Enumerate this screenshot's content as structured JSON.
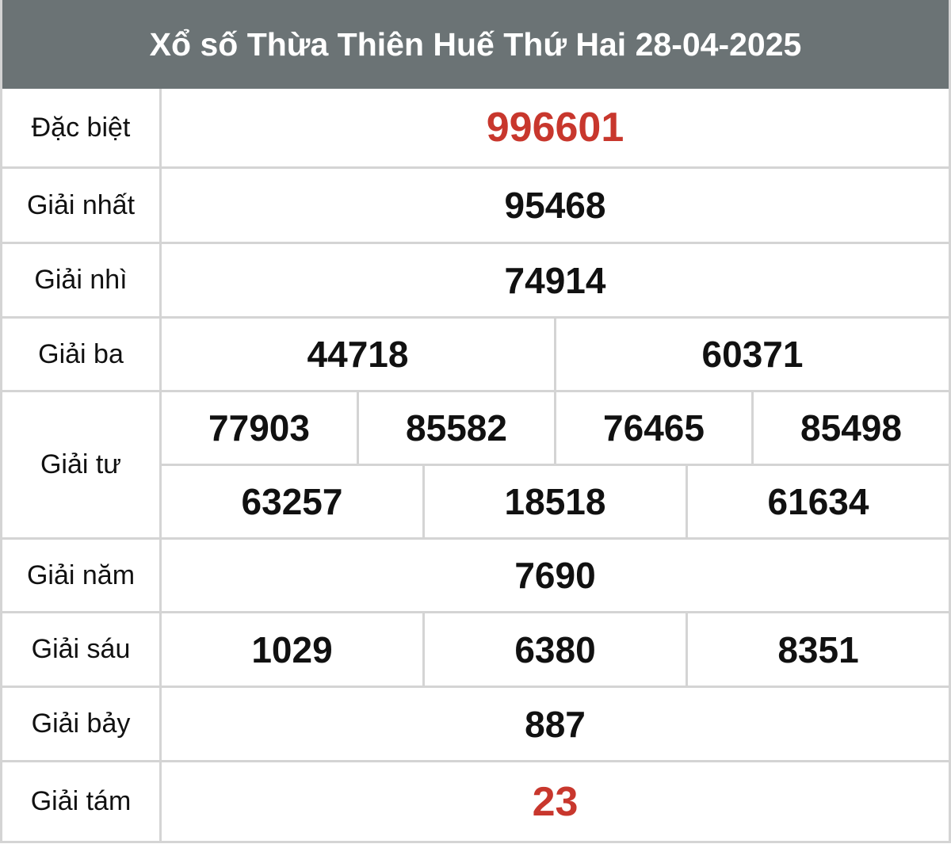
{
  "title": "Xổ số Thừa Thiên Huế Thứ Hai 28-04-2025",
  "colors": {
    "header_bg": "#6b7375",
    "highlight": "#c8372d",
    "border": "#d4d4d4"
  },
  "prizes": [
    {
      "label": "Đặc biệt",
      "rows": [
        [
          "996601"
        ]
      ]
    },
    {
      "label": "Giải nhất",
      "rows": [
        [
          "95468"
        ]
      ]
    },
    {
      "label": "Giải nhì",
      "rows": [
        [
          "74914"
        ]
      ]
    },
    {
      "label": "Giải ba",
      "rows": [
        [
          "44718",
          "60371"
        ]
      ]
    },
    {
      "label": "Giải tư",
      "rows": [
        [
          "77903",
          "85582",
          "76465",
          "85498"
        ],
        [
          "63257",
          "18518",
          "61634"
        ]
      ]
    },
    {
      "label": "Giải năm",
      "rows": [
        [
          "7690"
        ]
      ]
    },
    {
      "label": "Giải sáu",
      "rows": [
        [
          "1029",
          "6380",
          "8351"
        ]
      ]
    },
    {
      "label": "Giải bảy",
      "rows": [
        [
          "887"
        ]
      ]
    },
    {
      "label": "Giải tám",
      "rows": [
        [
          "23"
        ]
      ]
    }
  ]
}
